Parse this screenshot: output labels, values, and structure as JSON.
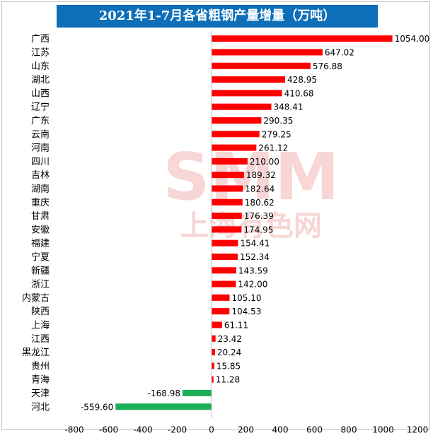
{
  "chart_data": {
    "type": "bar",
    "orientation": "horizontal",
    "title": "2021年1-7月各省粗钢产量增量（万吨）",
    "categories": [
      "广西",
      "江苏",
      "山东",
      "湖北",
      "山西",
      "辽宁",
      "广东",
      "云南",
      "河南",
      "四川",
      "吉林",
      "湖南",
      "重庆",
      "甘肃",
      "安徽",
      "福建",
      "宁夏",
      "新疆",
      "浙江",
      "内蒙古",
      "陕西",
      "上海",
      "江西",
      "黑龙江",
      "贵州",
      "青海",
      "天津",
      "河北"
    ],
    "values": [
      1054.0,
      647.02,
      576.88,
      428.95,
      410.68,
      348.41,
      290.35,
      279.25,
      261.12,
      210.0,
      189.32,
      182.64,
      180.62,
      176.39,
      174.95,
      154.41,
      152.34,
      143.59,
      142.0,
      105.1,
      104.53,
      61.11,
      23.42,
      20.24,
      15.85,
      11.28,
      -168.98,
      -559.6
    ],
    "value_labels": [
      "1054.00",
      "647.02",
      "576.88",
      "428.95",
      "410.68",
      "348.41",
      "290.35",
      "279.25",
      "261.12",
      "210.00",
      "189.32",
      "182.64",
      "180.62",
      "176.39",
      "174.95",
      "154.41",
      "152.34",
      "143.59",
      "142.00",
      "105.10",
      "104.53",
      "61.11",
      "23.42",
      "20.24",
      "15.85",
      "11.28",
      "-168.98",
      "-559.60"
    ],
    "xlim": [
      -800,
      1200
    ],
    "xticks": [
      -800,
      -600,
      -400,
      -200,
      0,
      200,
      400,
      600,
      800,
      1000,
      1200
    ],
    "xtick_labels": [
      "-800",
      "-600",
      "-400",
      "-200",
      "0",
      "200",
      "400",
      "600",
      "800",
      "1000",
      "1200"
    ],
    "positive_color": "#ff0000",
    "negative_color": "#1aaf54",
    "grid": false,
    "legend": "none"
  },
  "watermark": {
    "logo_text": "SMM",
    "caption": "上海有色网"
  }
}
